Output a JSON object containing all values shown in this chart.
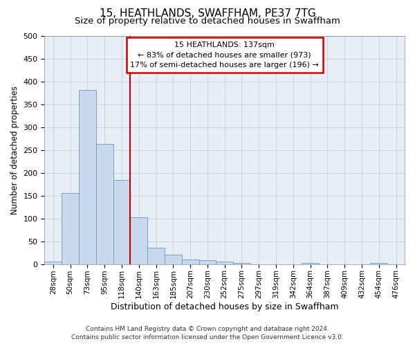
{
  "title": "15, HEATHLANDS, SWAFFHAM, PE37 7TG",
  "subtitle": "Size of property relative to detached houses in Swaffham",
  "xlabel": "Distribution of detached houses by size in Swaffham",
  "ylabel": "Number of detached properties",
  "bin_labels": [
    "28sqm",
    "50sqm",
    "73sqm",
    "95sqm",
    "118sqm",
    "140sqm",
    "163sqm",
    "185sqm",
    "207sqm",
    "230sqm",
    "252sqm",
    "275sqm",
    "297sqm",
    "319sqm",
    "342sqm",
    "364sqm",
    "387sqm",
    "409sqm",
    "432sqm",
    "454sqm",
    "476sqm"
  ],
  "bar_values": [
    5,
    155,
    381,
    263,
    185,
    103,
    36,
    21,
    10,
    8,
    5,
    3,
    0,
    0,
    0,
    3,
    0,
    0,
    0,
    3,
    0
  ],
  "bar_color": "#c9d9ed",
  "bar_edge_color": "#6699bb",
  "vertical_line_color": "#cc0000",
  "vline_position": 4.5,
  "annotation_line1": "15 HEATHLANDS: 137sqm",
  "annotation_line2": "← 83% of detached houses are smaller (973)",
  "annotation_line3": "17% of semi-detached houses are larger (196) →",
  "annotation_box_color": "#ffffff",
  "annotation_box_edge": "#cc0000",
  "ylim": [
    0,
    500
  ],
  "yticks": [
    0,
    50,
    100,
    150,
    200,
    250,
    300,
    350,
    400,
    450,
    500
  ],
  "footer_line1": "Contains HM Land Registry data © Crown copyright and database right 2024.",
  "footer_line2": "Contains public sector information licensed under the Open Government Licence v3.0.",
  "plot_bg_color": "#e8eef5",
  "title_fontsize": 11,
  "subtitle_fontsize": 9.5,
  "tick_fontsize": 7.5,
  "ylabel_fontsize": 8.5,
  "xlabel_fontsize": 9,
  "annotation_fontsize": 8,
  "footer_fontsize": 6.5
}
